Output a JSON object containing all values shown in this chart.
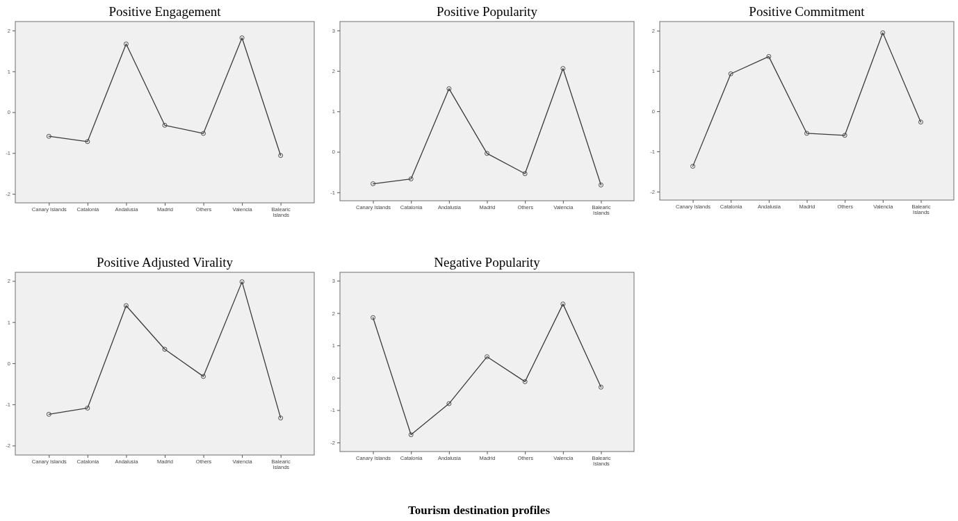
{
  "chart_data": [
    {
      "type": "line",
      "title": "Positive Engagement",
      "categories": [
        "Canary Islands",
        "Catalonia",
        "Andalusia",
        "Madrid",
        "Others",
        "Valencia",
        "Balearic Islands"
      ],
      "series": [
        {
          "color": "#3a3a3a",
          "values": [
            -0.59,
            -0.72,
            1.67,
            -0.32,
            -0.52,
            1.82,
            -1.06
          ]
        }
      ],
      "ylim": [
        -2.22,
        2.22
      ],
      "yticks": [
        -2,
        -1,
        0,
        1,
        2
      ],
      "grid": false,
      "marker": "circle",
      "line_style": "solid"
    },
    {
      "type": "line",
      "title": "Positive Popularity",
      "categories": [
        "Canary Islands",
        "Catalonia",
        "Andalusia",
        "Madrid",
        "Others",
        "Valencia",
        "Balearic Islands"
      ],
      "series": [
        {
          "color": "#3a3a3a",
          "values": [
            -0.79,
            -0.67,
            1.56,
            -0.04,
            -0.54,
            2.06,
            -0.82
          ]
        }
      ],
      "ylim": [
        -1.21,
        3.22
      ],
      "yticks": [
        -1,
        0,
        1,
        2,
        3
      ],
      "grid": false,
      "marker": "circle",
      "line_style": "solid"
    },
    {
      "type": "line",
      "title": "Positive Commitment",
      "categories": [
        "Canary Islands",
        "Catalonia",
        "Andalusia",
        "Madrid",
        "Others",
        "Valencia",
        "Balearic Islands"
      ],
      "series": [
        {
          "color": "#3a3a3a",
          "values": [
            -1.37,
            0.93,
            1.36,
            -0.55,
            -0.6,
            1.95,
            -0.27
          ]
        }
      ],
      "ylim": [
        -2.21,
        2.23
      ],
      "yticks": [
        -2,
        -1,
        0,
        1,
        2
      ],
      "grid": false,
      "marker": "circle",
      "line_style": "solid"
    },
    {
      "type": "line",
      "title": "Positive Adjusted Virality",
      "categories": [
        "Canary Islands",
        "Catalonia",
        "Andalusia",
        "Madrid",
        "Others",
        "Valencia",
        "Balearic Islands"
      ],
      "series": [
        {
          "color": "#3a3a3a",
          "values": [
            -1.24,
            -1.09,
            1.4,
            0.34,
            -0.32,
            1.98,
            -1.33
          ]
        }
      ],
      "ylim": [
        -2.23,
        2.21
      ],
      "yticks": [
        -2,
        -1,
        0,
        1,
        2
      ],
      "grid": false,
      "marker": "circle",
      "line_style": "solid"
    },
    {
      "type": "line",
      "title": "Negative Popularity",
      "categories": [
        "Canary Islands",
        "Catalonia",
        "Andalusia",
        "Madrid",
        "Others",
        "Valencia",
        "Balearic Islands"
      ],
      "series": [
        {
          "color": "#3a3a3a",
          "values": [
            1.86,
            -1.76,
            -0.8,
            0.65,
            -0.12,
            2.28,
            -0.29
          ]
        }
      ],
      "ylim": [
        -2.28,
        3.26
      ],
      "yticks": [
        -2,
        -1,
        0,
        1,
        2,
        3
      ],
      "grid": false,
      "marker": "circle",
      "line_style": "solid",
      "annotations": [
        "Tourism destination profiles"
      ]
    }
  ]
}
